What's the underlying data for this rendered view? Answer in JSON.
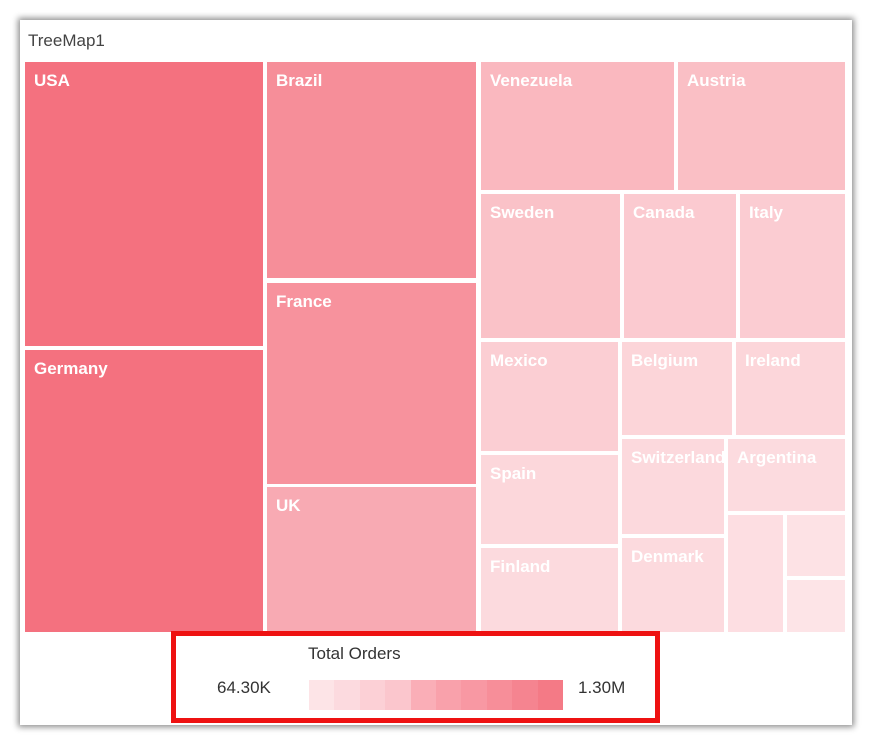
{
  "visual": {
    "title": "TreeMap1"
  },
  "chart_data": {
    "type": "treemap",
    "title": "TreeMap1",
    "measure": "Total Orders",
    "color_min": "#fde4e7",
    "color_max": "#f4717f",
    "items": [
      {
        "label": "USA",
        "value": 1300000
      },
      {
        "label": "Germany",
        "value": 1300000
      },
      {
        "label": "Brazil",
        "value": 1000000
      },
      {
        "label": "France",
        "value": 950000
      },
      {
        "label": "UK",
        "value": 700000
      },
      {
        "label": "Venezuela",
        "value": 550000
      },
      {
        "label": "Austria",
        "value": 480000
      },
      {
        "label": "Sweden",
        "value": 450000
      },
      {
        "label": "Canada",
        "value": 360000
      },
      {
        "label": "Italy",
        "value": 340000
      },
      {
        "label": "Mexico",
        "value": 320000
      },
      {
        "label": "Belgium",
        "value": 250000
      },
      {
        "label": "Ireland",
        "value": 240000
      },
      {
        "label": "Spain",
        "value": 230000
      },
      {
        "label": "Switzerland",
        "value": 210000
      },
      {
        "label": "Argentina",
        "value": 180000
      },
      {
        "label": "Finland",
        "value": 190000
      },
      {
        "label": "Denmark",
        "value": 200000
      },
      {
        "label": "",
        "value": 150000
      },
      {
        "label": "",
        "value": 110000
      },
      {
        "label": "",
        "value": 90000
      }
    ]
  },
  "legend": {
    "title": "Total Orders",
    "min_label": "64.30K",
    "max_label": "1.30M",
    "steps": [
      "#fde4e7",
      "#fcdadf",
      "#fcd0d6",
      "#fbc6cd",
      "#faaeb7",
      "#f9a1ab",
      "#f898a3",
      "#f78e99",
      "#f58490",
      "#f47a86"
    ]
  }
}
